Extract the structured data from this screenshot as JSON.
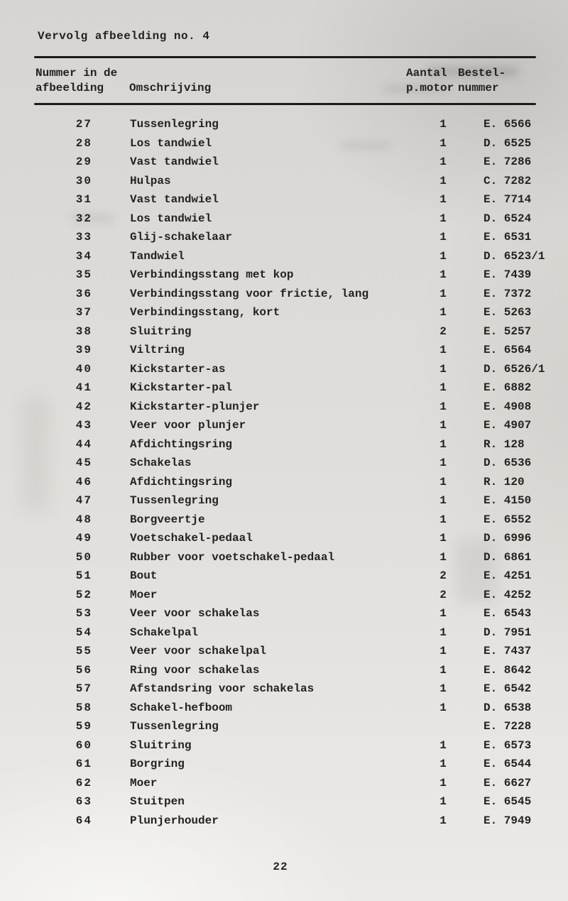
{
  "page": {
    "title": "Vervolg afbeelding no. 4",
    "page_number": "22"
  },
  "table": {
    "headers": {
      "number_col_line1": "Nummer in de",
      "number_col_line2": "afbeelding",
      "description_col": "Omschrijving",
      "quantity_col_line1": "Aantal",
      "quantity_col_line2": "p.motor",
      "order_col_line1": "Bestel-",
      "order_col_line2": "nummer"
    },
    "rows": [
      {
        "nr": "27",
        "omschrijving": "Tussenlegring",
        "aantal": "1",
        "bestelnummer": "E. 6566"
      },
      {
        "nr": "28",
        "omschrijving": "Los tandwiel",
        "aantal": "1",
        "bestelnummer": "D. 6525"
      },
      {
        "nr": "29",
        "omschrijving": "Vast tandwiel",
        "aantal": "1",
        "bestelnummer": "E. 7286"
      },
      {
        "nr": "30",
        "omschrijving": "Hulpas",
        "aantal": "1",
        "bestelnummer": "C. 7282"
      },
      {
        "nr": "31",
        "omschrijving": "Vast tandwiel",
        "aantal": "1",
        "bestelnummer": "E. 7714"
      },
      {
        "nr": "32",
        "omschrijving": "Los tandwiel",
        "aantal": "1",
        "bestelnummer": "D. 6524"
      },
      {
        "nr": "33",
        "omschrijving": "Glij-schakelaar",
        "aantal": "1",
        "bestelnummer": "E. 6531"
      },
      {
        "nr": "34",
        "omschrijving": "Tandwiel",
        "aantal": "1",
        "bestelnummer": "D. 6523/1"
      },
      {
        "nr": "35",
        "omschrijving": "Verbindingsstang met kop",
        "aantal": "1",
        "bestelnummer": "E. 7439"
      },
      {
        "nr": "36",
        "omschrijving": "Verbindingsstang voor frictie, lang",
        "aantal": "1",
        "bestelnummer": "E. 7372"
      },
      {
        "nr": "37",
        "omschrijving": "Verbindingsstang, kort",
        "aantal": "1",
        "bestelnummer": "E. 5263"
      },
      {
        "nr": "38",
        "omschrijving": "Sluitring",
        "aantal": "2",
        "bestelnummer": "E. 5257"
      },
      {
        "nr": "39",
        "omschrijving": "Viltring",
        "aantal": "1",
        "bestelnummer": "E. 6564"
      },
      {
        "nr": "40",
        "omschrijving": "Kickstarter-as",
        "aantal": "1",
        "bestelnummer": "D. 6526/1"
      },
      {
        "nr": "41",
        "omschrijving": "Kickstarter-pal",
        "aantal": "1",
        "bestelnummer": "E. 6882"
      },
      {
        "nr": "42",
        "omschrijving": "Kickstarter-plunjer",
        "aantal": "1",
        "bestelnummer": "E. 4908"
      },
      {
        "nr": "43",
        "omschrijving": "Veer voor plunjer",
        "aantal": "1",
        "bestelnummer": "E. 4907"
      },
      {
        "nr": "44",
        "omschrijving": "Afdichtingsring",
        "aantal": "1",
        "bestelnummer": "R. 128"
      },
      {
        "nr": "45",
        "omschrijving": "Schakelas",
        "aantal": "1",
        "bestelnummer": "D. 6536"
      },
      {
        "nr": "46",
        "omschrijving": "Afdichtingsring",
        "aantal": "1",
        "bestelnummer": "R. 120"
      },
      {
        "nr": "47",
        "omschrijving": "Tussenlegring",
        "aantal": "1",
        "bestelnummer": "E. 4150"
      },
      {
        "nr": "48",
        "omschrijving": "Borgveertje",
        "aantal": "1",
        "bestelnummer": "E. 6552"
      },
      {
        "nr": "49",
        "omschrijving": "Voetschakel-pedaal",
        "aantal": "1",
        "bestelnummer": "D. 6996"
      },
      {
        "nr": "50",
        "omschrijving": "Rubber voor voetschakel-pedaal",
        "aantal": "1",
        "bestelnummer": "D. 6861"
      },
      {
        "nr": "51",
        "omschrijving": "Bout",
        "aantal": "2",
        "bestelnummer": "E. 4251"
      },
      {
        "nr": "52",
        "omschrijving": "Moer",
        "aantal": "2",
        "bestelnummer": "E. 4252"
      },
      {
        "nr": "53",
        "omschrijving": "Veer voor schakelas",
        "aantal": "1",
        "bestelnummer": "E. 6543"
      },
      {
        "nr": "54",
        "omschrijving": "Schakelpal",
        "aantal": "1",
        "bestelnummer": "D. 7951"
      },
      {
        "nr": "55",
        "omschrijving": "Veer voor schakelpal",
        "aantal": "1",
        "bestelnummer": "E. 7437"
      },
      {
        "nr": "56",
        "omschrijving": "Ring voor schakelas",
        "aantal": "1",
        "bestelnummer": "E. 8642"
      },
      {
        "nr": "57",
        "omschrijving": "Afstandsring voor schakelas",
        "aantal": "1",
        "bestelnummer": "E. 6542"
      },
      {
        "nr": "58",
        "omschrijving": "Schakel-hefboom",
        "aantal": "1",
        "bestelnummer": "D. 6538"
      },
      {
        "nr": "59",
        "omschrijving": "Tussenlegring",
        "aantal": "",
        "bestelnummer": "E. 7228"
      },
      {
        "nr": "60",
        "omschrijving": "Sluitring",
        "aantal": "1",
        "bestelnummer": "E. 6573"
      },
      {
        "nr": "61",
        "omschrijving": "Borgring",
        "aantal": "1",
        "bestelnummer": "E. 6544"
      },
      {
        "nr": "62",
        "omschrijving": "Moer",
        "aantal": "1",
        "bestelnummer": "E. 6627"
      },
      {
        "nr": "63",
        "omschrijving": "Stuitpen",
        "aantal": "1",
        "bestelnummer": "E. 6545"
      },
      {
        "nr": "64",
        "omschrijving": "Plunjerhouder",
        "aantal": "1",
        "bestelnummer": "E. 7949"
      }
    ]
  }
}
